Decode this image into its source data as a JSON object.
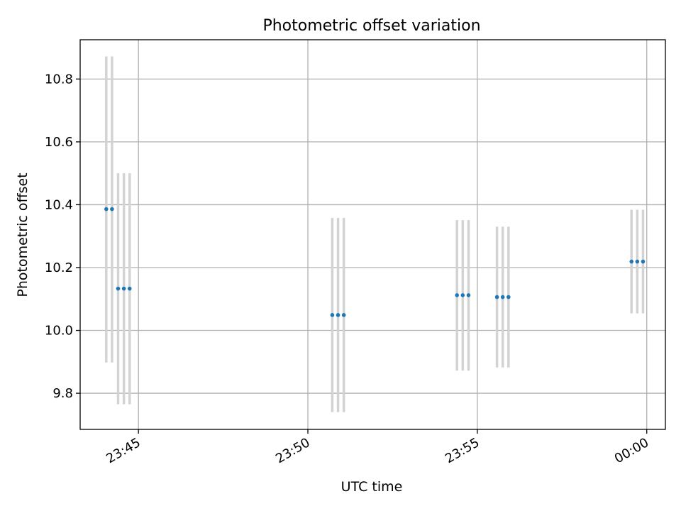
{
  "chart_data": {
    "type": "scatter",
    "title": "Photometric offset variation",
    "xlabel": "UTC time",
    "ylabel": "Photometric offset",
    "x_tick_labels": [
      "23:45",
      "23:50",
      "23:55",
      "00:00"
    ],
    "x_tick_minutes": [
      0,
      5,
      10,
      15
    ],
    "y_tick_labels": [
      "9.8",
      "10.0",
      "10.2",
      "10.4",
      "10.6",
      "10.8"
    ],
    "y_ticks": [
      9.8,
      10.0,
      10.2,
      10.4,
      10.6,
      10.8
    ],
    "xlim_minutes": [
      -1.72,
      15.55
    ],
    "ylim": [
      9.685,
      10.925
    ],
    "grid": true,
    "series": [
      {
        "marker_color": "#1f77b4",
        "errorbar_color": "#d3d3d3",
        "points": [
          {
            "t": -0.95,
            "y": 10.386,
            "yerr_low": 9.898,
            "yerr_high": 10.872
          },
          {
            "t": -0.78,
            "y": 10.386,
            "yerr_low": 9.898,
            "yerr_high": 10.872
          },
          {
            "t": -0.6,
            "y": 10.133,
            "yerr_low": 9.765,
            "yerr_high": 10.5
          },
          {
            "t": -0.43,
            "y": 10.133,
            "yerr_low": 9.765,
            "yerr_high": 10.5
          },
          {
            "t": -0.26,
            "y": 10.133,
            "yerr_low": 9.765,
            "yerr_high": 10.5
          },
          {
            "t": 5.72,
            "y": 10.049,
            "yerr_low": 9.74,
            "yerr_high": 10.358
          },
          {
            "t": 5.89,
            "y": 10.049,
            "yerr_low": 9.74,
            "yerr_high": 10.358
          },
          {
            "t": 6.06,
            "y": 10.049,
            "yerr_low": 9.74,
            "yerr_high": 10.358
          },
          {
            "t": 9.4,
            "y": 10.112,
            "yerr_low": 9.872,
            "yerr_high": 10.351
          },
          {
            "t": 9.57,
            "y": 10.112,
            "yerr_low": 9.872,
            "yerr_high": 10.351
          },
          {
            "t": 9.74,
            "y": 10.112,
            "yerr_low": 9.872,
            "yerr_high": 10.351
          },
          {
            "t": 10.58,
            "y": 10.106,
            "yerr_low": 9.882,
            "yerr_high": 10.33
          },
          {
            "t": 10.75,
            "y": 10.106,
            "yerr_low": 9.882,
            "yerr_high": 10.33
          },
          {
            "t": 10.92,
            "y": 10.106,
            "yerr_low": 9.882,
            "yerr_high": 10.33
          },
          {
            "t": 14.55,
            "y": 10.219,
            "yerr_low": 10.054,
            "yerr_high": 10.384
          },
          {
            "t": 14.72,
            "y": 10.219,
            "yerr_low": 10.054,
            "yerr_high": 10.384
          },
          {
            "t": 14.89,
            "y": 10.219,
            "yerr_low": 10.054,
            "yerr_high": 10.384
          }
        ]
      }
    ]
  }
}
